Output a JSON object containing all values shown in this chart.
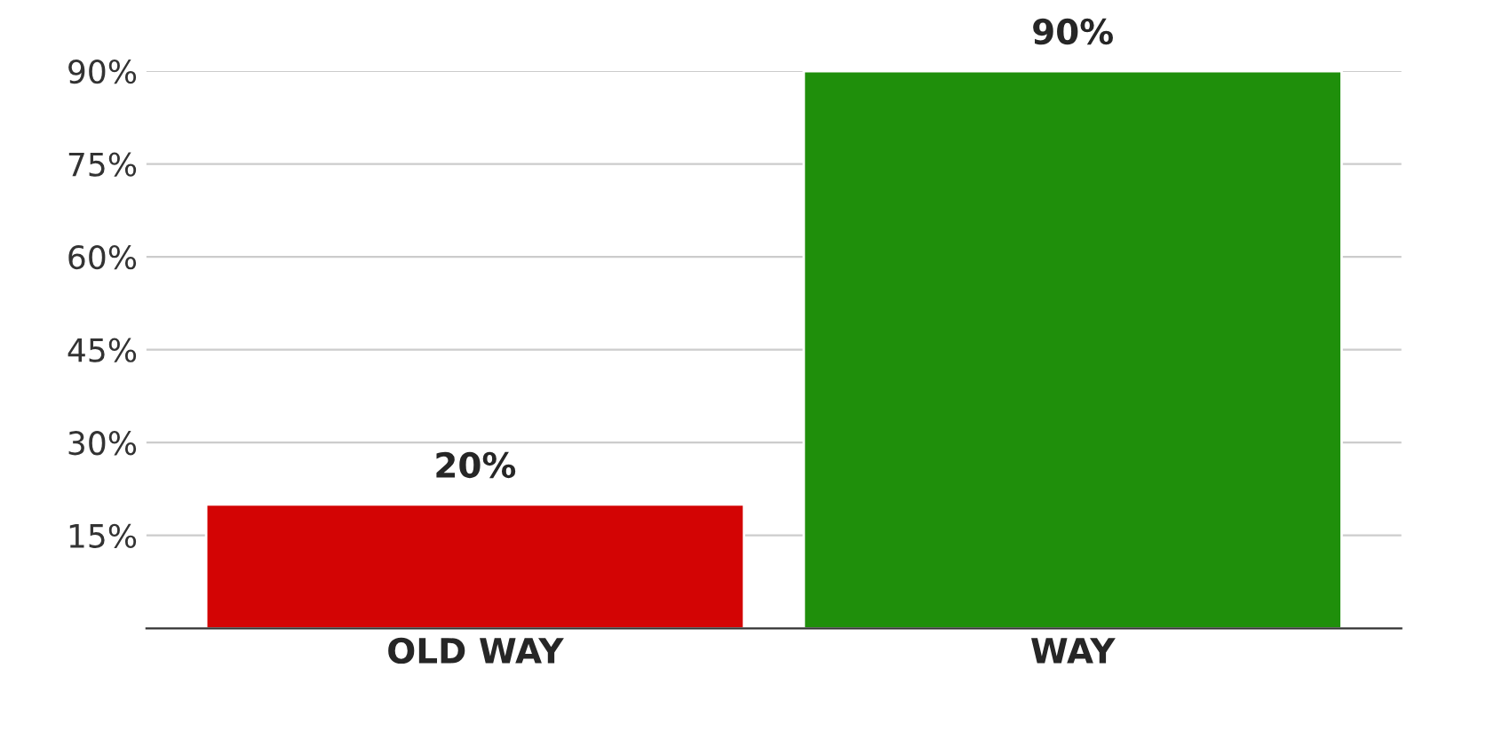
{
  "chart_data": {
    "type": "bar",
    "categories": [
      "OLD WAY",
      "WAY"
    ],
    "values": [
      20,
      90
    ],
    "colors": [
      "#d30404",
      "#1f8f0b"
    ],
    "value_labels": [
      "20%",
      "90%"
    ],
    "ylim": [
      0,
      90
    ],
    "yticks": [
      {
        "value": 15,
        "label": "15%"
      },
      {
        "value": 30,
        "label": "30%"
      },
      {
        "value": 45,
        "label": "45%"
      },
      {
        "value": 60,
        "label": "60%"
      },
      {
        "value": 75,
        "label": "75%"
      },
      {
        "value": 90,
        "label": "90%"
      }
    ],
    "grid": "y",
    "legend": false
  }
}
